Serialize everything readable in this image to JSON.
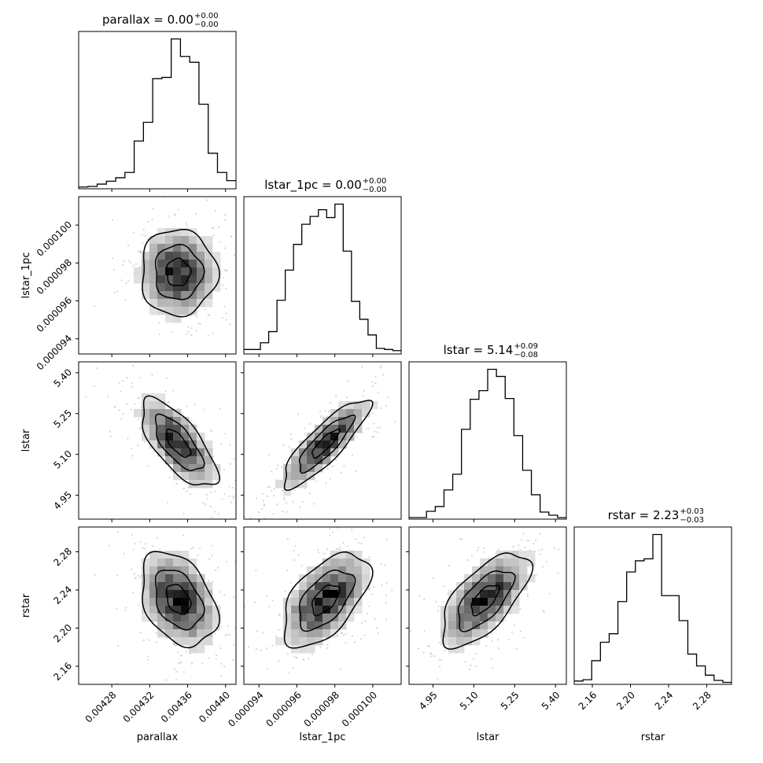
{
  "chart_data": {
    "type": "corner",
    "parameters": [
      {
        "name": "parallax",
        "axis_label": "parallax",
        "title": "parallax = 0.00",
        "title_main": "parallax = 0.00",
        "title_sup": "+0.00",
        "title_sub": "−0.00",
        "range": [
          0.004245,
          0.004411
        ],
        "ticks": [
          0.00428,
          0.00432,
          0.00436,
          0.0044
        ],
        "tick_labels": [
          "0.00428",
          "0.00432",
          "0.00436",
          "0.00440"
        ],
        "hist_counts": [
          0.3,
          0.4,
          0.8,
          1.3,
          1.9,
          2.8,
          8.2,
          11.4,
          18.9,
          19.1,
          25.7,
          22.7,
          21.7,
          14.5,
          6.1,
          2.8,
          1.4
        ]
      },
      {
        "name": "lstar_1pc",
        "axis_label": "lstar_1pc",
        "title": "lstar_1pc = 0.00",
        "title_main": "lstar_1pc = 0.00",
        "title_sup": "+0.00",
        "title_sub": "−0.00",
        "range": [
          9.32e-05,
          0.0001015
        ],
        "ticks": [
          9.4e-05,
          9.6e-05,
          9.8e-05,
          0.0001
        ],
        "tick_labels": [
          "0.000094",
          "0.000096",
          "0.000098",
          "0.000100"
        ],
        "hist_counts": [
          0.4,
          0.4,
          1.0,
          2.0,
          4.8,
          7.5,
          9.8,
          11.6,
          12.3,
          12.9,
          12.2,
          13.4,
          9.2,
          4.7,
          3.1,
          1.7,
          0.5,
          0.4,
          0.3
        ]
      },
      {
        "name": "lstar",
        "axis_label": "lstar",
        "title": "lstar = 5.14",
        "title_main": "lstar = 5.14",
        "title_sup": "+0.09",
        "title_sub": "−0.08",
        "range": [
          4.862,
          5.44
        ],
        "ticks": [
          4.95,
          5.1,
          5.25,
          5.4
        ],
        "tick_labels": [
          "4.95",
          "5.10",
          "5.25",
          "5.40"
        ],
        "hist_counts": [
          0.2,
          0.2,
          1.0,
          1.6,
          3.7,
          5.7,
          11.4,
          15.2,
          16.3,
          19.0,
          18.1,
          15.3,
          10.6,
          6.2,
          3.1,
          0.9,
          0.5,
          0.2
        ]
      },
      {
        "name": "rstar",
        "axis_label": "rstar",
        "title": "rstar = 2.23",
        "title_main": "rstar = 2.23",
        "title_sup": "+0.03",
        "title_sub": "−0.03",
        "range": [
          2.141,
          2.306
        ],
        "ticks": [
          2.16,
          2.2,
          2.24,
          2.28
        ],
        "tick_labels": [
          "2.16",
          "2.20",
          "2.24",
          "2.28"
        ],
        "hist_counts": [
          0.5,
          0.7,
          3.6,
          6.4,
          7.7,
          12.6,
          17.1,
          18.8,
          19.1,
          22.8,
          13.5,
          13.5,
          9.7,
          4.6,
          2.8,
          1.4,
          0.6,
          0.3
        ]
      }
    ],
    "pairs": [
      {
        "x": "parallax",
        "y": "lstar_1pc",
        "x_mean": 0.00435,
        "y_mean": 9.75e-05,
        "x_sd": 2.1e-05,
        "y_sd": 1.2e-06,
        "corr": 0.0
      },
      {
        "x": "parallax",
        "y": "lstar",
        "x_mean": 0.00435,
        "y_mean": 5.14,
        "x_sd": 2.1e-05,
        "y_sd": 0.085,
        "corr": -0.7
      },
      {
        "x": "lstar_1pc",
        "y": "lstar",
        "x_mean": 9.75e-05,
        "y_mean": 5.14,
        "x_sd": 1.2e-06,
        "y_sd": 0.085,
        "corr": 0.85
      },
      {
        "x": "parallax",
        "y": "rstar",
        "x_mean": 0.00435,
        "y_mean": 2.23,
        "x_sd": 2.1e-05,
        "y_sd": 0.026,
        "corr": -0.35
      },
      {
        "x": "lstar_1pc",
        "y": "rstar",
        "x_mean": 9.75e-05,
        "y_mean": 2.23,
        "x_sd": 1.2e-06,
        "y_sd": 0.026,
        "corr": 0.55
      },
      {
        "x": "lstar",
        "y": "rstar",
        "x_mean": 5.14,
        "y_mean": 2.23,
        "x_sd": 0.085,
        "y_sd": 0.026,
        "corr": 0.65
      }
    ],
    "grid": false,
    "legend": "none"
  }
}
